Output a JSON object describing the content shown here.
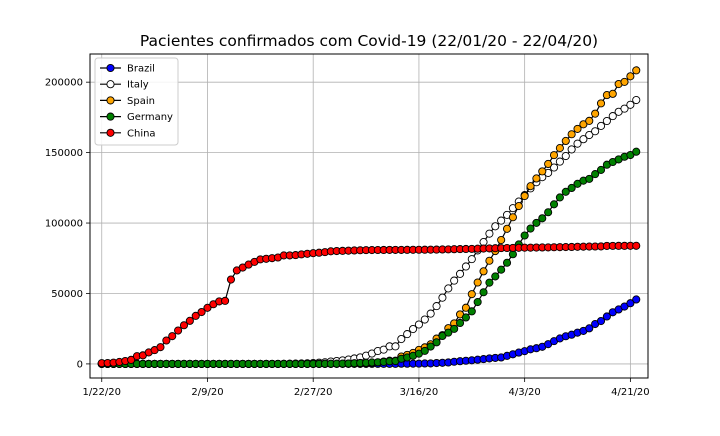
{
  "chart_data": {
    "type": "line",
    "title": "Pacientes confirmados com Covid-19 (22/01/20 - 22/04/20)",
    "xlabel": "",
    "ylabel": "",
    "x_start": "1/22/20",
    "x_ticks": [
      {
        "day": 0,
        "label": "1/22/20"
      },
      {
        "day": 18,
        "label": "2/9/20"
      },
      {
        "day": 36,
        "label": "2/27/20"
      },
      {
        "day": 54,
        "label": "3/16/20"
      },
      {
        "day": 72,
        "label": "4/3/20"
      },
      {
        "day": 90,
        "label": "4/21/20"
      }
    ],
    "y_ticks": [
      0,
      50000,
      100000,
      150000,
      200000
    ],
    "ylim": [
      -10000,
      220000
    ],
    "xlim": [
      -2,
      93
    ],
    "grid": true,
    "legend_position": "top-left",
    "series": [
      {
        "name": "Brazil",
        "color": "#0000ff",
        "values": [
          0,
          0,
          0,
          0,
          0,
          0,
          0,
          0,
          0,
          0,
          0,
          0,
          0,
          0,
          0,
          0,
          0,
          0,
          0,
          0,
          0,
          0,
          0,
          0,
          0,
          0,
          0,
          0,
          0,
          0,
          0,
          0,
          0,
          0,
          0,
          1,
          1,
          1,
          2,
          2,
          2,
          2,
          4,
          4,
          13,
          13,
          20,
          25,
          31,
          38,
          52,
          151,
          151,
          162,
          200,
          321,
          372,
          621,
          793,
          1021,
          1546,
          1924,
          2247,
          2554,
          2985,
          3417,
          3904,
          4256,
          4579,
          5717,
          6836,
          8044,
          9056,
          10360,
          11130,
          12161,
          14034,
          16170,
          18092,
          19638,
          20727,
          22192,
          23430,
          25262,
          28320,
          30425,
          33682,
          36658,
          38654,
          40743,
          43079,
          45757
        ]
      },
      {
        "name": "Italy",
        "color": "#ffffff",
        "values": [
          0,
          0,
          0,
          0,
          0,
          0,
          0,
          0,
          0,
          2,
          2,
          2,
          2,
          2,
          2,
          2,
          3,
          3,
          3,
          3,
          3,
          3,
          3,
          3,
          3,
          3,
          3,
          3,
          3,
          3,
          20,
          62,
          155,
          229,
          322,
          453,
          655,
          888,
          1128,
          1694,
          2036,
          2502,
          3089,
          3858,
          4636,
          5883,
          7375,
          9172,
          10149,
          12462,
          12462,
          17660,
          21157,
          24747,
          27980,
          31506,
          35713,
          41035,
          47021,
          53578,
          59138,
          63927,
          69176,
          74386,
          80589,
          86498,
          92472,
          97689,
          101739,
          105792,
          110574,
          115242,
          119827,
          124632,
          128948,
          132547,
          135586,
          139422,
          143626,
          147577,
          152271,
          156363,
          159516,
          162488,
          165155,
          168941,
          172434,
          175925,
          178972,
          181228,
          183957,
          187327
        ]
      },
      {
        "name": "Spain",
        "color": "#ffa500",
        "values": [
          0,
          0,
          0,
          0,
          0,
          0,
          0,
          0,
          0,
          0,
          1,
          1,
          1,
          1,
          1,
          1,
          1,
          1,
          1,
          2,
          2,
          2,
          2,
          2,
          2,
          2,
          2,
          2,
          2,
          2,
          2,
          2,
          2,
          2,
          6,
          13,
          15,
          32,
          45,
          84,
          120,
          165,
          222,
          259,
          400,
          500,
          673,
          1073,
          1695,
          2277,
          2277,
          5232,
          6391,
          7798,
          9942,
          11748,
          13910,
          17963,
          20410,
          25374,
          28768,
          35136,
          39885,
          49515,
          57786,
          65719,
          73235,
          80110,
          87956,
          95923,
          104118,
          112065,
          119199,
          126168,
          131646,
          136675,
          141942,
          148220,
          153222,
          158273,
          163027,
          166831,
          170099,
          172541,
          177644,
          184948,
          190839,
          191726,
          198674,
          200210,
          204178,
          208389
        ]
      },
      {
        "name": "Germany",
        "color": "#008000",
        "values": [
          0,
          0,
          0,
          0,
          0,
          1,
          4,
          4,
          4,
          5,
          8,
          10,
          12,
          12,
          12,
          12,
          13,
          13,
          14,
          14,
          16,
          16,
          16,
          16,
          16,
          16,
          16,
          16,
          16,
          16,
          16,
          16,
          16,
          16,
          17,
          27,
          46,
          48,
          79,
          130,
          159,
          196,
          262,
          482,
          670,
          799,
          1040,
          1176,
          1457,
          1908,
          2078,
          3675,
          4585,
          5795,
          7272,
          9257,
          12327,
          15320,
          19848,
          22213,
          24873,
          29056,
          32986,
          37323,
          43938,
          50871,
          57695,
          62095,
          66885,
          71808,
          77872,
          84794,
          91159,
          96092,
          100123,
          103374,
          107663,
          113296,
          118181,
          122171,
          124908,
          127854,
          130072,
          131359,
          134753,
          137698,
          141397,
          143342,
          145184,
          147065,
          148291,
          150648
        ]
      },
      {
        "name": "China",
        "color": "#ff0000",
        "values": [
          548,
          643,
          920,
          1406,
          2075,
          2877,
          5509,
          6087,
          8141,
          9802,
          11891,
          16630,
          19716,
          23707,
          27440,
          30587,
          34110,
          36814,
          39829,
          42354,
          44386,
          44759,
          59895,
          66358,
          68413,
          70513,
          72434,
          74211,
          74619,
          75077,
          75550,
          77001,
          77022,
          77241,
          77754,
          78166,
          78600,
          78928,
          79356,
          79932,
          80136,
          80261,
          80386,
          80537,
          80690,
          80770,
          80823,
          80860,
          80887,
          80921,
          80932,
          80945,
          80977,
          81003,
          81033,
          81058,
          81102,
          81156,
          81250,
          81305,
          81435,
          81498,
          81591,
          81661,
          81782,
          81897,
          81999,
          82122,
          82198,
          82279,
          82361,
          82432,
          82511,
          82543,
          82602,
          82665,
          82718,
          82809,
          82883,
          82941,
          83014,
          83134,
          83213,
          83306,
          83356,
          83403,
          83760,
          83787,
          83805,
          83817,
          83853,
          83868
        ]
      }
    ]
  }
}
